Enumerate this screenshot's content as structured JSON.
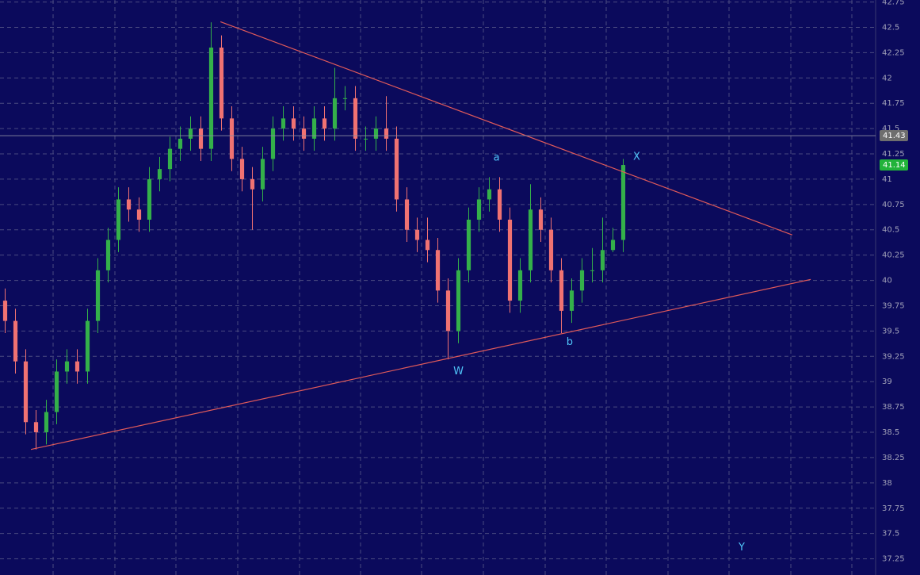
{
  "chart_data": {
    "type": "candlestick",
    "x": [
      0,
      1,
      2,
      3,
      4,
      5,
      6,
      7,
      8,
      9,
      10,
      11,
      12,
      13,
      14,
      15,
      16,
      17,
      18,
      19,
      20,
      21,
      22,
      23,
      24,
      25,
      26,
      27,
      28,
      29,
      30,
      31,
      32,
      33,
      34,
      35,
      36,
      37,
      38,
      39,
      40,
      41,
      42,
      43,
      44,
      45,
      46,
      47,
      48,
      49,
      50,
      51,
      52,
      53,
      54,
      55,
      56,
      57,
      58,
      59,
      60
    ],
    "open": [
      39.8,
      39.6,
      39.2,
      38.6,
      38.5,
      38.7,
      39.1,
      39.2,
      39.1,
      39.6,
      40.1,
      40.4,
      40.8,
      40.7,
      40.6,
      41.0,
      41.1,
      41.3,
      41.4,
      41.5,
      41.3,
      42.3,
      41.6,
      41.2,
      41.0,
      40.9,
      41.2,
      41.5,
      41.6,
      41.5,
      41.4,
      41.6,
      41.5,
      41.8,
      41.8,
      41.4,
      41.4,
      41.5,
      41.4,
      40.8,
      40.5,
      40.4,
      40.3,
      39.9,
      39.5,
      40.1,
      40.6,
      40.8,
      40.9,
      40.6,
      39.8,
      40.1,
      40.7,
      40.5,
      40.1,
      39.7,
      39.9,
      40.1,
      40.1,
      40.3,
      40.4
    ],
    "high": [
      39.92,
      39.72,
      39.32,
      38.72,
      38.82,
      39.22,
      39.32,
      39.32,
      39.72,
      40.22,
      40.52,
      40.92,
      40.92,
      40.82,
      41.12,
      41.22,
      41.42,
      41.52,
      41.62,
      41.62,
      42.55,
      42.42,
      41.72,
      41.32,
      41.12,
      41.32,
      41.62,
      41.72,
      41.72,
      41.62,
      41.72,
      41.72,
      42.1,
      41.92,
      41.92,
      41.52,
      41.62,
      41.82,
      41.52,
      40.92,
      40.62,
      40.62,
      40.42,
      40.02,
      40.22,
      40.72,
      40.92,
      41.02,
      41.02,
      40.72,
      40.22,
      40.95,
      40.82,
      40.62,
      40.22,
      40.02,
      40.22,
      40.32,
      40.62,
      40.52,
      41.2
    ],
    "low": [
      39.48,
      39.08,
      38.48,
      38.33,
      38.38,
      38.58,
      38.98,
      38.98,
      38.98,
      39.48,
      39.98,
      40.28,
      40.58,
      40.48,
      40.48,
      40.88,
      40.98,
      41.18,
      41.28,
      41.18,
      41.18,
      41.48,
      41.08,
      40.88,
      40.5,
      40.78,
      41.08,
      41.38,
      41.38,
      41.28,
      41.28,
      41.38,
      41.38,
      41.68,
      41.28,
      41.28,
      41.28,
      41.28,
      40.68,
      40.38,
      40.28,
      40.18,
      39.78,
      39.22,
      39.38,
      39.98,
      40.48,
      40.68,
      40.48,
      39.68,
      39.68,
      39.98,
      40.38,
      39.98,
      39.48,
      39.58,
      39.78,
      39.98,
      39.98,
      40.28,
      40.28
    ],
    "close": [
      39.6,
      39.2,
      38.6,
      38.5,
      38.7,
      39.1,
      39.2,
      39.1,
      39.6,
      40.1,
      40.4,
      40.8,
      40.7,
      40.6,
      41.0,
      41.1,
      41.3,
      41.4,
      41.5,
      41.3,
      42.3,
      41.6,
      41.2,
      41.0,
      40.9,
      41.2,
      41.5,
      41.6,
      41.5,
      41.4,
      41.6,
      41.5,
      41.8,
      41.8,
      41.4,
      41.4,
      41.5,
      41.4,
      40.8,
      40.5,
      40.4,
      40.3,
      39.9,
      39.5,
      40.1,
      40.6,
      40.8,
      40.9,
      40.6,
      39.8,
      40.1,
      40.7,
      40.5,
      40.1,
      39.7,
      39.9,
      40.1,
      40.1,
      40.3,
      40.4,
      41.14
    ],
    "up_color": "#34b04a",
    "down_color": "#f07272",
    "xlim": [
      -0.5,
      84.5
    ],
    "ylim": [
      37.09,
      42.77
    ],
    "yticks": [
      37.25,
      37.5,
      37.75,
      38,
      38.25,
      38.5,
      38.75,
      39,
      39.25,
      39.5,
      39.75,
      40,
      40.25,
      40.5,
      40.75,
      41,
      41.25,
      41.5,
      41.75,
      42,
      42.25,
      42.5,
      42.75
    ],
    "grid": true,
    "trendlines": [
      {
        "x": [
          20.9,
          76.4
        ],
        "y": [
          42.555,
          40.45
        ],
        "color": "#e05a5a"
      },
      {
        "x": [
          2.5,
          78.2
        ],
        "y": [
          38.33,
          40.01
        ],
        "color": "#e05a5a"
      }
    ],
    "annotations": [
      {
        "text": "a",
        "x": 47.7,
        "y": 41.21
      },
      {
        "text": "X",
        "x": 61.3,
        "y": 41.22
      },
      {
        "text": "W",
        "x": 44,
        "y": 39.1
      },
      {
        "text": "b",
        "x": 54.8,
        "y": 39.39
      },
      {
        "text": "Y",
        "x": 71.5,
        "y": 37.36
      }
    ],
    "annotation_color": "#4fc3f7",
    "price_markers": [
      {
        "value": 41.43,
        "color": "#6e6e6e"
      },
      {
        "value": 41.14,
        "color": "#22b33a"
      }
    ]
  }
}
